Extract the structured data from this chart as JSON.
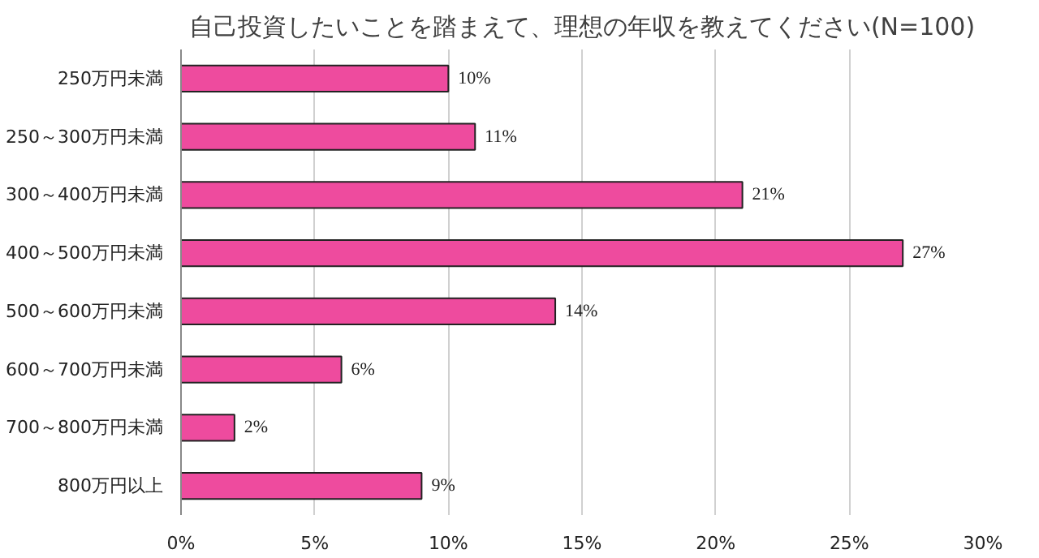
{
  "chart_data": {
    "type": "bar",
    "orientation": "horizontal",
    "title": "自己投資したいことを踏まえて、理想の年収を教えてください(N=100)",
    "categories": [
      "250万円未満",
      "250～300万円未満",
      "300～400万円未満",
      "400～500万円未満",
      "500～600万円未満",
      "600～700万円未満",
      "700～800万円未満",
      "800万円以上"
    ],
    "values": [
      10,
      11,
      21,
      27,
      14,
      6,
      2,
      9
    ],
    "value_labels": [
      "10%",
      "11%",
      "21%",
      "27%",
      "14%",
      "6%",
      "2%",
      "9%"
    ],
    "color": "#ee4b9e",
    "xlim": [
      0,
      30
    ],
    "xticks": [
      {
        "value": 0,
        "label": "0%"
      },
      {
        "value": 5,
        "label": "5%"
      },
      {
        "value": 10,
        "label": "10%"
      },
      {
        "value": 15,
        "label": "15%"
      },
      {
        "value": 20,
        "label": "20%"
      },
      {
        "value": 25,
        "label": "25%"
      },
      {
        "value": 30,
        "label": "30%"
      }
    ],
    "grid": "x"
  }
}
